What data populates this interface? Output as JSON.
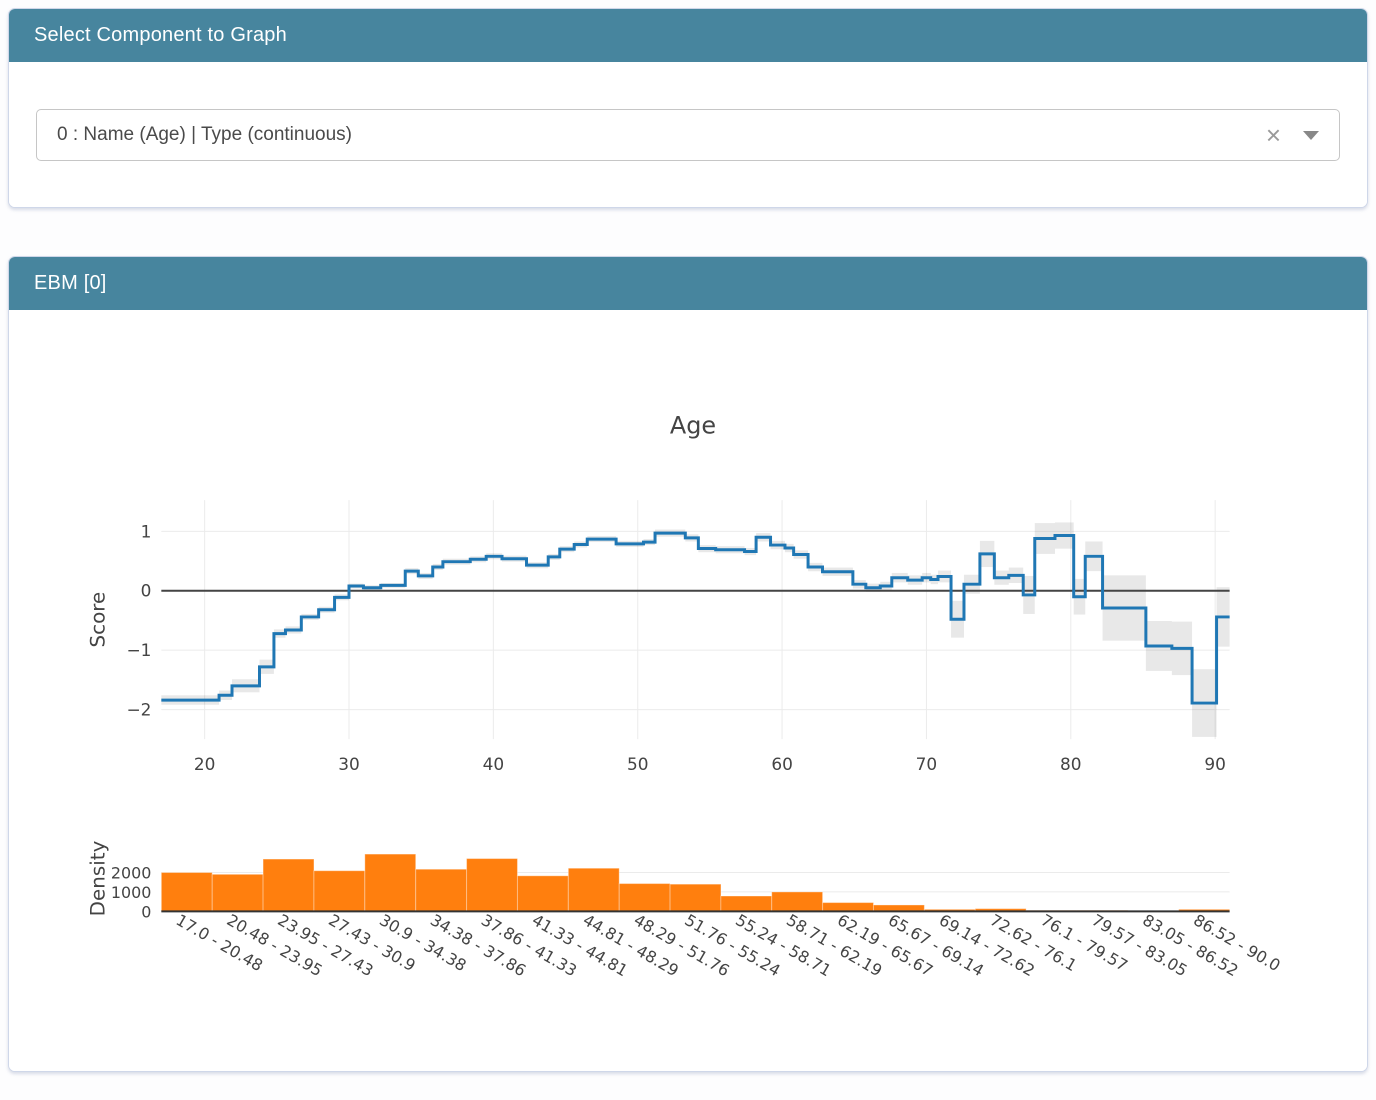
{
  "selector_panel": {
    "title": "Select Component to Graph",
    "dropdown": {
      "value": "0 : Name (Age) | Type (continuous)",
      "clear_icon": "×",
      "arrow_icon": "triangle-down"
    }
  },
  "ebm_panel": {
    "title": "EBM [0]"
  },
  "chart_data": {
    "type": "line",
    "title": "Age",
    "colors": {
      "line": "#1f77b4",
      "error_band": "#444444",
      "error_band_opacity": 0.12,
      "bar": "#ff7f0e",
      "axis_text": "#444444",
      "gridline": "#ebebeb",
      "zeroline": "#444444"
    },
    "score_plot": {
      "ylabel": "Score",
      "yticks": [
        1,
        0,
        -1,
        -2
      ],
      "xticks": [
        20,
        30,
        40,
        50,
        60,
        70,
        80,
        90
      ],
      "xrange": [
        17,
        91
      ],
      "yrange": [
        -2.5,
        1.53
      ],
      "grid": true,
      "zeroline": true,
      "segments": [
        {
          "x0": 17.0,
          "x1": 21.0,
          "y": -1.84,
          "e": 0.08
        },
        {
          "x0": 21.0,
          "x1": 21.9,
          "y": -1.76,
          "e": 0.08
        },
        {
          "x0": 21.9,
          "x1": 23.8,
          "y": -1.6,
          "e": 0.11
        },
        {
          "x0": 23.8,
          "x1": 24.8,
          "y": -1.28,
          "e": 0.12
        },
        {
          "x0": 24.8,
          "x1": 25.6,
          "y": -0.72,
          "e": 0.07
        },
        {
          "x0": 25.6,
          "x1": 26.7,
          "y": -0.66,
          "e": 0.06
        },
        {
          "x0": 26.7,
          "x1": 27.9,
          "y": -0.44,
          "e": 0.05
        },
        {
          "x0": 27.9,
          "x1": 29.0,
          "y": -0.32,
          "e": 0.05
        },
        {
          "x0": 29.0,
          "x1": 30.0,
          "y": -0.11,
          "e": 0.05
        },
        {
          "x0": 30.0,
          "x1": 31.0,
          "y": 0.08,
          "e": 0.04
        },
        {
          "x0": 31.0,
          "x1": 32.2,
          "y": 0.05,
          "e": 0.04
        },
        {
          "x0": 32.2,
          "x1": 33.9,
          "y": 0.09,
          "e": 0.04
        },
        {
          "x0": 33.9,
          "x1": 34.8,
          "y": 0.33,
          "e": 0.05
        },
        {
          "x0": 34.8,
          "x1": 35.8,
          "y": 0.25,
          "e": 0.05
        },
        {
          "x0": 35.8,
          "x1": 36.5,
          "y": 0.4,
          "e": 0.05
        },
        {
          "x0": 36.5,
          "x1": 38.4,
          "y": 0.49,
          "e": 0.05
        },
        {
          "x0": 38.4,
          "x1": 39.5,
          "y": 0.53,
          "e": 0.05
        },
        {
          "x0": 39.5,
          "x1": 40.6,
          "y": 0.58,
          "e": 0.05
        },
        {
          "x0": 40.6,
          "x1": 42.3,
          "y": 0.54,
          "e": 0.05
        },
        {
          "x0": 42.3,
          "x1": 43.8,
          "y": 0.43,
          "e": 0.05
        },
        {
          "x0": 43.8,
          "x1": 44.6,
          "y": 0.57,
          "e": 0.05
        },
        {
          "x0": 44.6,
          "x1": 45.6,
          "y": 0.7,
          "e": 0.05
        },
        {
          "x0": 45.6,
          "x1": 46.5,
          "y": 0.78,
          "e": 0.05
        },
        {
          "x0": 46.5,
          "x1": 48.5,
          "y": 0.87,
          "e": 0.05
        },
        {
          "x0": 48.5,
          "x1": 50.4,
          "y": 0.79,
          "e": 0.05
        },
        {
          "x0": 50.4,
          "x1": 51.2,
          "y": 0.82,
          "e": 0.05
        },
        {
          "x0": 51.2,
          "x1": 53.3,
          "y": 0.97,
          "e": 0.06
        },
        {
          "x0": 53.3,
          "x1": 54.2,
          "y": 0.89,
          "e": 0.06
        },
        {
          "x0": 54.2,
          "x1": 55.4,
          "y": 0.71,
          "e": 0.06
        },
        {
          "x0": 55.4,
          "x1": 57.4,
          "y": 0.69,
          "e": 0.06
        },
        {
          "x0": 57.4,
          "x1": 58.2,
          "y": 0.66,
          "e": 0.06
        },
        {
          "x0": 58.2,
          "x1": 59.2,
          "y": 0.9,
          "e": 0.07
        },
        {
          "x0": 59.2,
          "x1": 60.2,
          "y": 0.77,
          "e": 0.07
        },
        {
          "x0": 60.2,
          "x1": 60.8,
          "y": 0.72,
          "e": 0.07
        },
        {
          "x0": 60.8,
          "x1": 61.8,
          "y": 0.61,
          "e": 0.07
        },
        {
          "x0": 61.8,
          "x1": 62.8,
          "y": 0.4,
          "e": 0.07
        },
        {
          "x0": 62.8,
          "x1": 64.9,
          "y": 0.32,
          "e": 0.07
        },
        {
          "x0": 64.9,
          "x1": 65.8,
          "y": 0.11,
          "e": 0.07
        },
        {
          "x0": 65.8,
          "x1": 66.8,
          "y": 0.05,
          "e": 0.07
        },
        {
          "x0": 66.8,
          "x1": 67.6,
          "y": 0.08,
          "e": 0.07
        },
        {
          "x0": 67.6,
          "x1": 68.7,
          "y": 0.22,
          "e": 0.08
        },
        {
          "x0": 68.7,
          "x1": 69.7,
          "y": 0.18,
          "e": 0.08
        },
        {
          "x0": 69.7,
          "x1": 70.3,
          "y": 0.22,
          "e": 0.08
        },
        {
          "x0": 70.3,
          "x1": 70.8,
          "y": 0.19,
          "e": 0.08
        },
        {
          "x0": 70.8,
          "x1": 71.7,
          "y": 0.24,
          "e": 0.1
        },
        {
          "x0": 71.7,
          "x1": 72.6,
          "y": -0.48,
          "e": 0.31
        },
        {
          "x0": 72.6,
          "x1": 73.7,
          "y": 0.11,
          "e": 0.16
        },
        {
          "x0": 73.7,
          "x1": 74.7,
          "y": 0.62,
          "e": 0.22
        },
        {
          "x0": 74.7,
          "x1": 75.7,
          "y": 0.22,
          "e": 0.12
        },
        {
          "x0": 75.7,
          "x1": 76.7,
          "y": 0.26,
          "e": 0.13
        },
        {
          "x0": 76.7,
          "x1": 77.5,
          "y": -0.07,
          "e": 0.32
        },
        {
          "x0": 77.5,
          "x1": 78.9,
          "y": 0.88,
          "e": 0.26
        },
        {
          "x0": 78.9,
          "x1": 80.2,
          "y": 0.93,
          "e": 0.22
        },
        {
          "x0": 80.2,
          "x1": 81.0,
          "y": -0.1,
          "e": 0.3
        },
        {
          "x0": 81.0,
          "x1": 82.2,
          "y": 0.58,
          "e": 0.25
        },
        {
          "x0": 82.2,
          "x1": 85.2,
          "y": -0.29,
          "e": 0.55
        },
        {
          "x0": 85.2,
          "x1": 87.0,
          "y": -0.93,
          "e": 0.42
        },
        {
          "x0": 87.0,
          "x1": 88.4,
          "y": -0.97,
          "e": 0.45
        },
        {
          "x0": 88.4,
          "x1": 90.1,
          "y": -1.89,
          "e": 0.57
        },
        {
          "x0": 90.1,
          "x1": 91.0,
          "y": -0.44,
          "e": 0.5
        }
      ]
    },
    "density_plot": {
      "type": "bar",
      "ylabel": "Density",
      "yticks": [
        2000,
        1000,
        0
      ],
      "yrange": [
        0,
        3230
      ],
      "categories": [
        "17.0 - 20.48",
        "20.48 - 23.95",
        "23.95 - 27.43",
        "27.43 - 30.9",
        "30.9 - 34.38",
        "34.38 - 37.86",
        "37.86 - 41.33",
        "41.33 - 44.81",
        "44.81 - 48.29",
        "48.29 - 51.76",
        "51.76 - 55.24",
        "55.24 - 58.71",
        "58.71 - 62.19",
        "62.19 - 65.67",
        "65.67 - 69.14",
        "69.14 - 72.62",
        "72.62 - 76.1",
        "76.1 - 79.57",
        "79.57 - 83.05",
        "83.05 - 86.52",
        "86.52 - 90.0"
      ],
      "values": [
        2000,
        1910,
        2690,
        2090,
        2950,
        2170,
        2720,
        1830,
        2220,
        1430,
        1400,
        790,
        1000,
        450,
        330,
        100,
        140,
        50,
        50,
        20,
        100
      ]
    }
  }
}
